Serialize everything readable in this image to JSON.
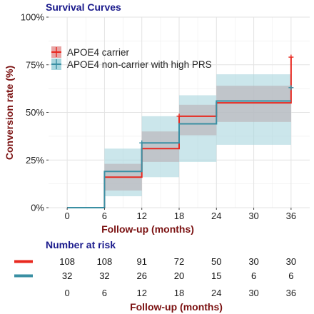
{
  "chart_data": {
    "type": "line",
    "title": "Survival Curves",
    "xlabel": "Follow-up (months)",
    "ylabel": "Conversion rate (%)",
    "x_ticks": [
      0,
      6,
      12,
      18,
      24,
      30,
      36
    ],
    "y_ticks": [
      0,
      25,
      50,
      75,
      100
    ],
    "y_tick_labels": [
      "0%",
      "25%",
      "50%",
      "75%",
      "100%"
    ],
    "xlim": [
      -3,
      39
    ],
    "ylim": [
      0,
      100
    ],
    "grid": true,
    "legend_position": "top-left",
    "series": [
      {
        "name": "APOE4 carrier",
        "color": "#e8281f",
        "band_color": "#d99090",
        "steps": [
          {
            "x_start": 0,
            "x_end": 6,
            "y": 0,
            "lo": 0,
            "hi": 0
          },
          {
            "x_start": 6,
            "x_end": 12,
            "y": 16,
            "lo": 9,
            "hi": 23
          },
          {
            "x_start": 12,
            "x_end": 18,
            "y": 31,
            "lo": 24,
            "hi": 40
          },
          {
            "x_start": 18,
            "x_end": 24,
            "y": 48,
            "lo": 38,
            "hi": 54
          },
          {
            "x_start": 24,
            "x_end": 36,
            "y": 55,
            "lo": 45,
            "hi": 64
          }
        ],
        "censor_marks": [
          {
            "x": 18,
            "y": 48
          },
          {
            "x": 36,
            "y": 79
          }
        ],
        "final_step": {
          "x": 36,
          "y": 79
        }
      },
      {
        "name": "APOE4 non-carrier with high PRS",
        "color": "#3a8fa3",
        "band_color": "#a8d6de",
        "steps": [
          {
            "x_start": 0,
            "x_end": 6,
            "y": 0,
            "lo": 0,
            "hi": 0
          },
          {
            "x_start": 6,
            "x_end": 12,
            "y": 19,
            "lo": 6,
            "hi": 31
          },
          {
            "x_start": 12,
            "x_end": 18,
            "y": 34,
            "lo": 16,
            "hi": 48
          },
          {
            "x_start": 18,
            "x_end": 24,
            "y": 44,
            "lo": 24,
            "hi": 59
          },
          {
            "x_start": 24,
            "x_end": 36,
            "y": 56,
            "lo": 33,
            "hi": 70
          }
        ],
        "censor_marks": [
          {
            "x": 12,
            "y": 34
          },
          {
            "x": 36,
            "y": 63
          }
        ]
      }
    ],
    "risk_table": {
      "title": "Number at risk",
      "xlabel": "Follow-up (months)",
      "x_ticks": [
        0,
        6,
        12,
        18,
        24,
        30,
        36
      ],
      "rows": [
        {
          "color": "#e8281f",
          "values": [
            108,
            108,
            91,
            72,
            50,
            30,
            30
          ]
        },
        {
          "color": "#3a8fa3",
          "values": [
            32,
            32,
            26,
            20,
            15,
            6,
            6
          ]
        }
      ]
    }
  }
}
